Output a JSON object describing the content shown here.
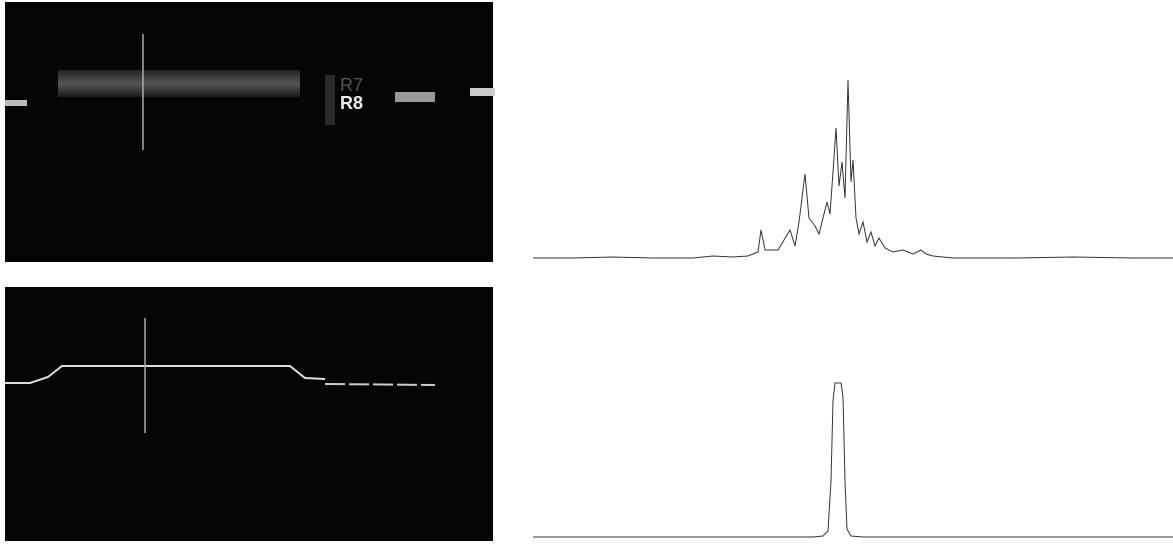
{
  "top_image": {
    "labels": [
      "R7",
      "R8"
    ]
  },
  "chart_data": [
    {
      "type": "line",
      "color": "#333333",
      "xlim": [
        0,
        640
      ],
      "ylim": [
        0,
        100
      ],
      "x": [
        0,
        40,
        80,
        120,
        160,
        180,
        200,
        215,
        225,
        228,
        232,
        245,
        257,
        262,
        266,
        272,
        276,
        282,
        286,
        290,
        294,
        297,
        300,
        303,
        306,
        309,
        312,
        315,
        318,
        320,
        323,
        326,
        330,
        334,
        338,
        342,
        346,
        352,
        360,
        370,
        380,
        388,
        393,
        400,
        420,
        480,
        540,
        600,
        640
      ],
      "values": [
        2,
        2,
        2.5,
        2,
        2,
        3,
        2.5,
        3,
        5,
        16,
        6,
        6,
        16,
        8,
        20,
        44,
        22,
        18,
        14,
        22,
        30,
        24,
        45,
        67,
        38,
        50,
        32,
        91,
        40,
        51,
        22,
        14,
        20,
        10,
        15,
        8,
        12,
        7,
        5,
        6,
        4,
        6,
        4,
        3,
        2,
        2,
        2.5,
        2,
        2
      ]
    },
    {
      "type": "line",
      "color": "#333333",
      "xlim": [
        0,
        640
      ],
      "ylim": [
        0,
        100
      ],
      "x": [
        0,
        200,
        280,
        290,
        295,
        298,
        300,
        302,
        308,
        310,
        312,
        314,
        318,
        330,
        450,
        640
      ],
      "values": [
        2,
        2,
        2,
        2.5,
        5,
        30,
        70,
        79,
        79,
        72,
        30,
        6,
        2.5,
        2,
        2,
        2
      ]
    }
  ]
}
